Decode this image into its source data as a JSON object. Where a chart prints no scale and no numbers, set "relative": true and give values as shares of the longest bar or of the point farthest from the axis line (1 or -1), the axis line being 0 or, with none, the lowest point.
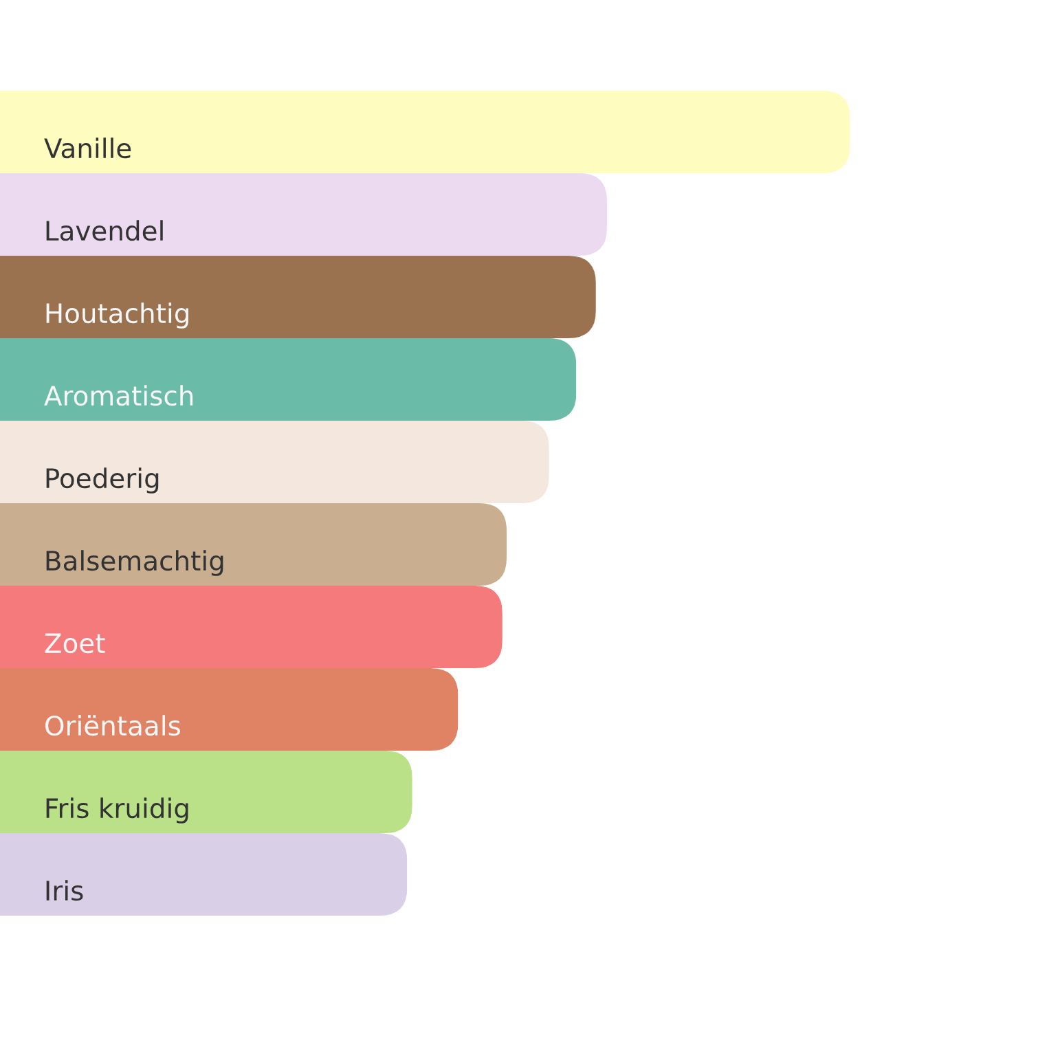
{
  "chart_data": {
    "type": "bar",
    "orientation": "horizontal",
    "relative": true,
    "categories": [
      "Vanille",
      "Lavendel",
      "Houtachtig",
      "Aromatisch",
      "Poederig",
      "Balsemachtig",
      "Zoet",
      "Oriëntaals",
      "Fris kruidig",
      "Iris"
    ],
    "values": [
      1,
      0.714,
      0.701,
      0.678,
      0.646,
      0.596,
      0.591,
      0.539,
      0.485,
      0.479
    ],
    "colors": [
      "#fffcc0",
      "#ecdaf0",
      "#9a7250",
      "#6bbba9",
      "#f4e7dd",
      "#c9ae90",
      "#f47a7c",
      "#e08264",
      "#bae188",
      "#d9d0e8"
    ]
  }
}
